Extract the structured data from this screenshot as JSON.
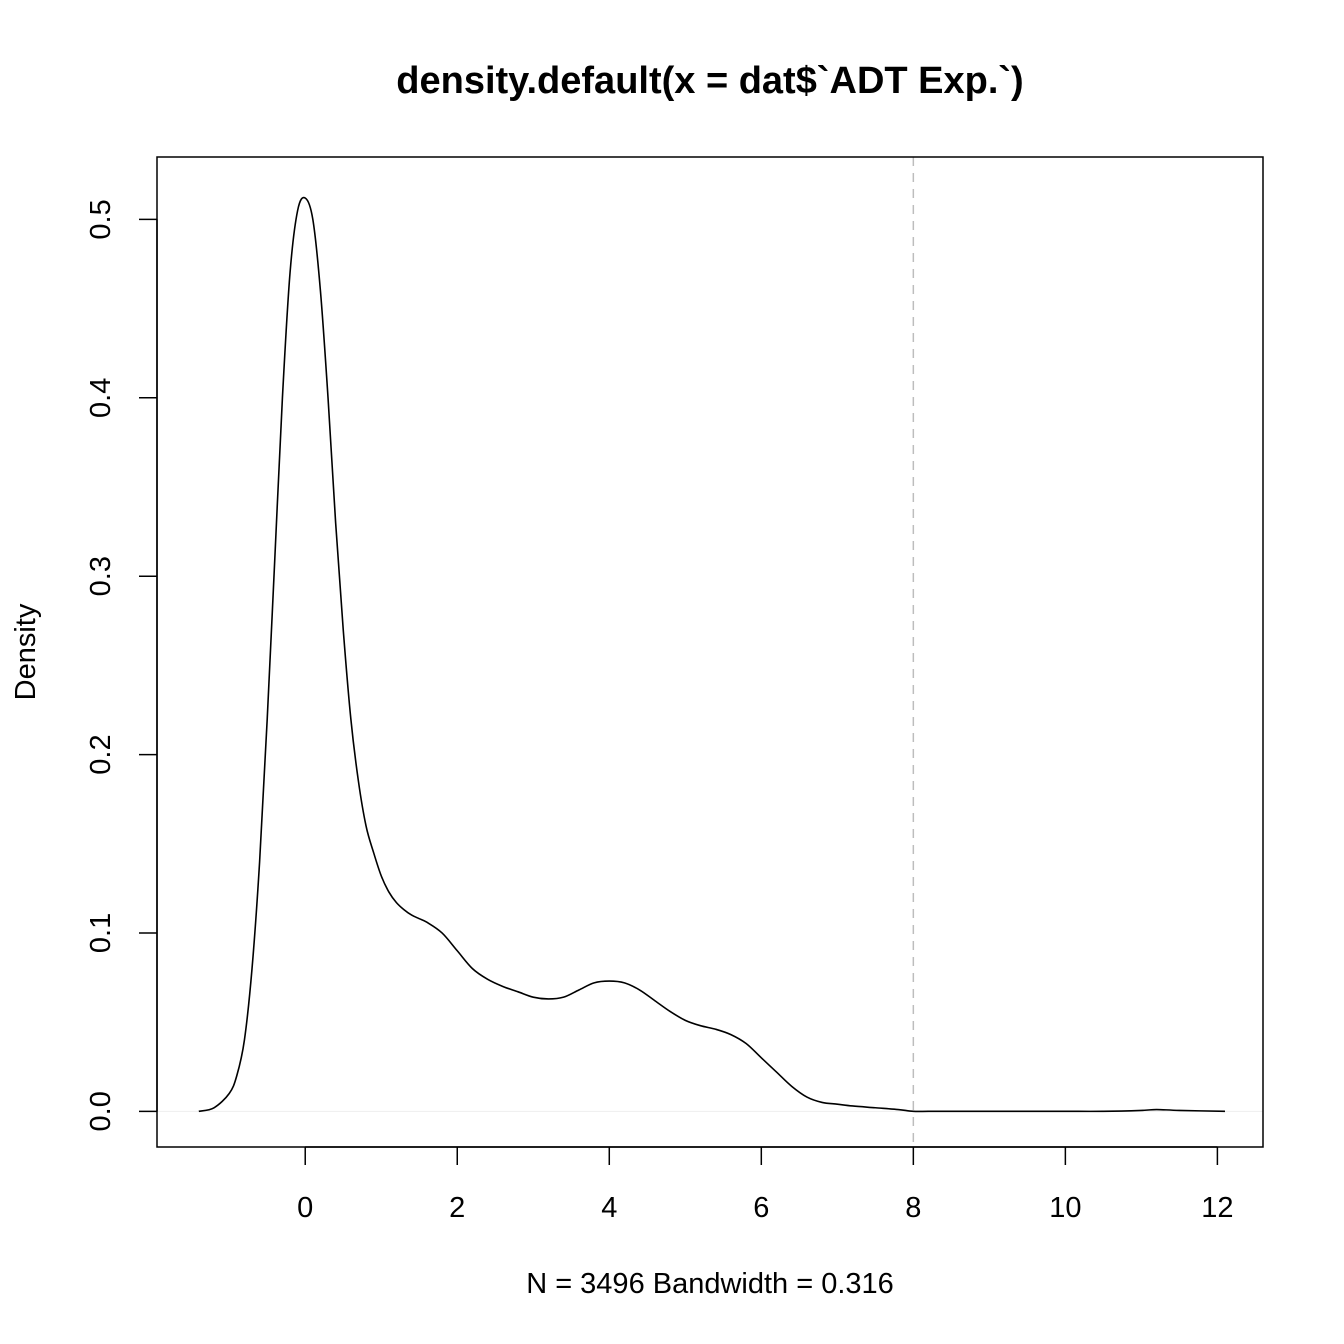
{
  "chart_data": {
    "type": "line",
    "title": "density.default(x = dat$`ADT Exp.`)",
    "xlabel": "N = 3496   Bandwidth = 0.316",
    "ylabel": "Density",
    "xlim": [
      -1.95,
      12.6
    ],
    "ylim": [
      -0.02,
      0.535
    ],
    "x_ticks": [
      0,
      2,
      4,
      6,
      8,
      10,
      12
    ],
    "x_tick_labels": [
      "0",
      "2",
      "4",
      "6",
      "8",
      "10",
      "12"
    ],
    "y_ticks": [
      0.0,
      0.1,
      0.2,
      0.3,
      0.4,
      0.5
    ],
    "y_tick_labels": [
      "0.0",
      "0.1",
      "0.2",
      "0.3",
      "0.4",
      "0.5"
    ],
    "reference_lines": {
      "vertical_x": 8,
      "vertical_color": "#bdbdbd",
      "vertical_style": "dashed",
      "horizontal_y": 0,
      "horizontal_color": "#eeeeee"
    },
    "grid": false,
    "series": [
      {
        "color": "#000000",
        "x": [
          -1.4,
          -1.2,
          -1.0,
          -0.9,
          -0.8,
          -0.7,
          -0.6,
          -0.5,
          -0.4,
          -0.3,
          -0.2,
          -0.1,
          0.0,
          0.1,
          0.2,
          0.3,
          0.4,
          0.5,
          0.6,
          0.7,
          0.8,
          0.9,
          1.0,
          1.1,
          1.2,
          1.3,
          1.4,
          1.5,
          1.6,
          1.8,
          2.0,
          2.2,
          2.4,
          2.6,
          2.8,
          3.0,
          3.2,
          3.4,
          3.6,
          3.8,
          4.0,
          4.2,
          4.4,
          4.6,
          4.8,
          5.0,
          5.2,
          5.4,
          5.6,
          5.8,
          6.0,
          6.2,
          6.4,
          6.6,
          6.8,
          7.0,
          7.2,
          7.5,
          7.8,
          8.0,
          8.2,
          8.5,
          9.0,
          9.5,
          10.0,
          10.5,
          11.0,
          11.2,
          11.5,
          12.1
        ],
        "y": [
          0.0,
          0.002,
          0.01,
          0.02,
          0.04,
          0.08,
          0.14,
          0.22,
          0.31,
          0.4,
          0.47,
          0.505,
          0.512,
          0.5,
          0.46,
          0.4,
          0.33,
          0.27,
          0.22,
          0.185,
          0.16,
          0.145,
          0.132,
          0.123,
          0.117,
          0.113,
          0.11,
          0.108,
          0.106,
          0.1,
          0.09,
          0.08,
          0.074,
          0.07,
          0.067,
          0.064,
          0.063,
          0.064,
          0.068,
          0.072,
          0.073,
          0.072,
          0.068,
          0.062,
          0.056,
          0.051,
          0.048,
          0.046,
          0.043,
          0.038,
          0.03,
          0.022,
          0.014,
          0.008,
          0.005,
          0.004,
          0.003,
          0.002,
          0.001,
          0.0,
          0.0,
          0.0,
          0.0,
          0.0,
          0.0,
          0.0,
          0.0005,
          0.001,
          0.0005,
          0.0
        ]
      }
    ]
  }
}
